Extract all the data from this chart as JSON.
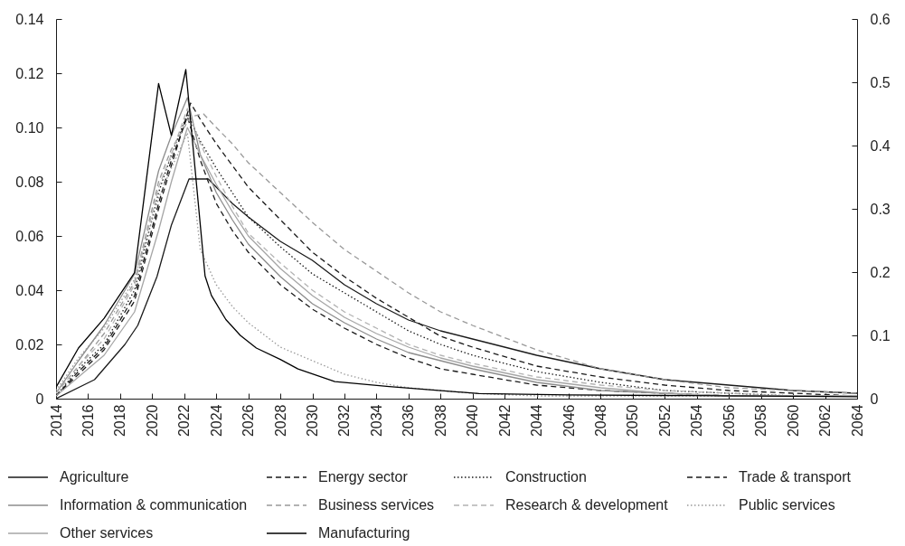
{
  "chart_data": {
    "type": "line",
    "xlim": [
      2014,
      2064
    ],
    "xticks": [
      2014,
      2016,
      2018,
      2020,
      2022,
      2024,
      2026,
      2028,
      2030,
      2032,
      2034,
      2036,
      2038,
      2040,
      2042,
      2044,
      2046,
      2048,
      2050,
      2052,
      2054,
      2056,
      2058,
      2060,
      2062,
      2064
    ],
    "ylim": [
      0,
      0.14
    ],
    "yticks": [
      0,
      0.02,
      0.04,
      0.06,
      0.08,
      {
        "value": 0.1,
        "label": "0.10"
      },
      0.12,
      0.14
    ],
    "y2lim": [
      0,
      0.6
    ],
    "y2ticks": [
      0,
      0.1,
      0.2,
      0.3,
      0.4,
      0.5,
      0.6
    ],
    "legend": "bottom",
    "series": [
      {
        "name": "Agriculture",
        "color": "#1a1a1a",
        "line_style": "solid",
        "x": [
          2014,
          2016.4,
          2018.3,
          2019.1,
          2020.3,
          2021.2,
          2022.3,
          2023.5,
          2024,
          2025,
          2026,
          2028,
          2030,
          2032,
          2034,
          2036,
          2038,
          2040,
          2044,
          2048,
          2052,
          2056,
          2060,
          2064
        ],
        "values": [
          0,
          0.007,
          0.02,
          0.027,
          0.045,
          0.064,
          0.081,
          0.081,
          0.078,
          0.072,
          0.067,
          0.058,
          0.051,
          0.042,
          0.035,
          0.029,
          0.025,
          0.022,
          0.016,
          0.011,
          0.007,
          0.005,
          0.003,
          0.002
        ]
      },
      {
        "name": "Energy sector",
        "color": "#1a1a1a",
        "line_style": "dashed",
        "x": [
          2014,
          2015.4,
          2017,
          2018.9,
          2020.4,
          2021.2,
          2022.2,
          2023,
          2024,
          2025,
          2026,
          2028,
          2030,
          2032,
          2034,
          2036,
          2038,
          2040,
          2044,
          2048,
          2052,
          2056,
          2060,
          2064
        ],
        "values": [
          0.001,
          0.01,
          0.019,
          0.038,
          0.072,
          0.088,
          0.104,
          0.088,
          0.072,
          0.062,
          0.054,
          0.042,
          0.033,
          0.026,
          0.02,
          0.015,
          0.011,
          0.009,
          0.005,
          0.003,
          0.002,
          0.001,
          0.001,
          0.001
        ]
      },
      {
        "name": "Construction",
        "color": "#1a1a1a",
        "line_style": "dotted",
        "x": [
          2014,
          2015.4,
          2017,
          2018.9,
          2020.4,
          2021.2,
          2022.2,
          2023,
          2024,
          2025,
          2026,
          2028,
          2030,
          2032,
          2034,
          2036,
          2038,
          2040,
          2044,
          2048,
          2052,
          2056,
          2060,
          2064
        ],
        "values": [
          0.001,
          0.011,
          0.02,
          0.04,
          0.076,
          0.09,
          0.105,
          0.095,
          0.085,
          0.076,
          0.067,
          0.056,
          0.046,
          0.039,
          0.032,
          0.025,
          0.02,
          0.016,
          0.01,
          0.006,
          0.003,
          0.002,
          0.001,
          0.001
        ]
      },
      {
        "name": "Trade & transport",
        "color": "#1a1a1a",
        "line_style": "dashed",
        "x": [
          2014,
          2015.4,
          2017,
          2018.9,
          2020.4,
          2021.2,
          2022.4,
          2023,
          2024,
          2025,
          2026,
          2028,
          2030,
          2032,
          2034,
          2036,
          2038,
          2040,
          2044,
          2048,
          2052,
          2056,
          2060,
          2064
        ],
        "values": [
          0.001,
          0.009,
          0.018,
          0.036,
          0.07,
          0.086,
          0.109,
          0.103,
          0.094,
          0.086,
          0.078,
          0.066,
          0.054,
          0.045,
          0.037,
          0.03,
          0.023,
          0.019,
          0.012,
          0.008,
          0.005,
          0.003,
          0.002,
          0.001
        ]
      },
      {
        "name": "Information & communication",
        "color": "#8c8c8c",
        "line_style": "solid",
        "x": [
          2014,
          2015.4,
          2017,
          2018.9,
          2020.4,
          2021.2,
          2022.2,
          2023,
          2024,
          2025,
          2026,
          2028,
          2030,
          2032,
          2034,
          2036,
          2038,
          2040,
          2044,
          2048,
          2052,
          2056,
          2060,
          2064
        ],
        "values": [
          0.002,
          0.014,
          0.027,
          0.046,
          0.084,
          0.097,
          0.111,
          0.09,
          0.076,
          0.066,
          0.057,
          0.045,
          0.035,
          0.028,
          0.022,
          0.017,
          0.014,
          0.011,
          0.006,
          0.003,
          0.002,
          0.001,
          0.001,
          0.001
        ]
      },
      {
        "name": "Business services",
        "color": "#999999",
        "line_style": "dashed",
        "x": [
          2014,
          2015.4,
          2017,
          2018.9,
          2020.4,
          2021.2,
          2022.4,
          2023.2,
          2024,
          2025,
          2026,
          2028,
          2030,
          2032,
          2034,
          2036,
          2038,
          2040,
          2044,
          2048,
          2052,
          2056,
          2060,
          2064
        ],
        "values": [
          0.002,
          0.012,
          0.024,
          0.043,
          0.08,
          0.092,
          0.104,
          0.105,
          0.1,
          0.094,
          0.087,
          0.076,
          0.065,
          0.055,
          0.047,
          0.039,
          0.032,
          0.027,
          0.018,
          0.011,
          0.007,
          0.004,
          0.003,
          0.002
        ]
      },
      {
        "name": "Research & development",
        "color": "#b3b3b3",
        "line_style": "dashed",
        "x": [
          2014,
          2015.4,
          2017,
          2018.9,
          2020.4,
          2021.2,
          2022.2,
          2023,
          2024,
          2025,
          2026,
          2028,
          2030,
          2032,
          2034,
          2036,
          2038,
          2040,
          2044,
          2048,
          2052,
          2056,
          2060,
          2064
        ],
        "values": [
          0.002,
          0.012,
          0.022,
          0.042,
          0.078,
          0.09,
          0.107,
          0.094,
          0.082,
          0.071,
          0.061,
          0.05,
          0.04,
          0.032,
          0.026,
          0.02,
          0.016,
          0.013,
          0.008,
          0.005,
          0.003,
          0.002,
          0.001,
          0.001
        ]
      },
      {
        "name": "Public services",
        "color": "#999999",
        "line_style": "dotted",
        "x": [
          2014,
          2015.4,
          2017,
          2018.9,
          2020.4,
          2021.2,
          2022.2,
          2023,
          2024,
          2025,
          2026,
          2028,
          2030,
          2032,
          2034,
          2036,
          2038,
          2040,
          2044,
          2048,
          2052,
          2056,
          2060,
          2064
        ],
        "values": [
          0.003,
          0.015,
          0.026,
          0.044,
          0.074,
          0.085,
          0.098,
          0.055,
          0.042,
          0.034,
          0.028,
          0.019,
          0.014,
          0.009,
          0.006,
          0.004,
          0.003,
          0.002,
          0.001,
          0.001,
          0.001,
          0.001,
          0.001,
          0.001
        ]
      },
      {
        "name": "Other services",
        "color": "#a6a6a6",
        "line_style": "solid",
        "x": [
          2014,
          2015.4,
          2017,
          2018.9,
          2020.4,
          2021.2,
          2022.2,
          2023,
          2024,
          2025,
          2026,
          2028,
          2030,
          2032,
          2034,
          2036,
          2038,
          2040,
          2044,
          2048,
          2052,
          2056,
          2060,
          2064
        ],
        "values": [
          0.001,
          0.008,
          0.016,
          0.032,
          0.062,
          0.08,
          0.1,
          0.09,
          0.079,
          0.069,
          0.06,
          0.048,
          0.038,
          0.03,
          0.024,
          0.019,
          0.015,
          0.012,
          0.007,
          0.004,
          0.002,
          0.001,
          0.001,
          0.001
        ]
      },
      {
        "name": "Manufacturing",
        "color": "#000000",
        "line_style": "solid",
        "axis": "y2",
        "x": [
          2014,
          2015.4,
          2017,
          2018.9,
          2020.4,
          2021.2,
          2022.1,
          2023.3,
          2023.7,
          2024.6,
          2025.5,
          2026.5,
          2028,
          2029.1,
          2031.4,
          2034.8,
          2040.4,
          2046,
          2052,
          2058,
          2064
        ],
        "values": [
          0.018,
          0.08,
          0.127,
          0.199,
          0.498,
          0.416,
          0.52,
          0.194,
          0.163,
          0.125,
          0.1,
          0.08,
          0.062,
          0.047,
          0.027,
          0.019,
          0.008,
          0.006,
          0.005,
          0.004,
          0.003
        ]
      }
    ]
  }
}
